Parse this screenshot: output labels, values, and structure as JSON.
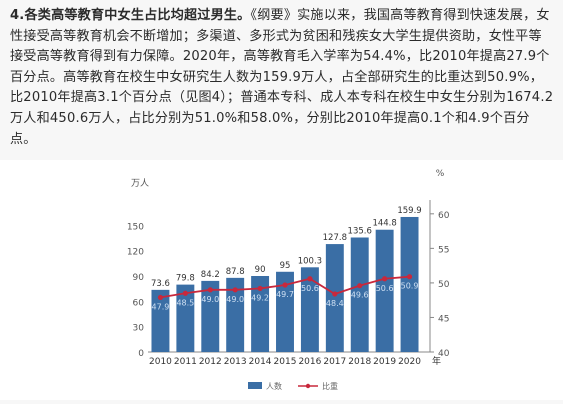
{
  "article": {
    "lead": "4.各类高等教育中女生占比均超过男生。",
    "body": "《纲要》实施以来，我国高等教育得到快速发展，女性接受高等教育机会不断增加；多渠道、多形式为贫困和残疾女大学生提供资助，女性平等接受高等教育得到有力保障。2020年，高等教育毛入学率为54.4%，比2010年提高27.9个百分点。高等教育在校生中女研究生人数为159.9万人，占全部研究生的比重达到50.9%，比2010年提高3.1个百分点（见图4）；普通本专科、成人本专科在校生中女生分别为1674.2万人和450.6万人，占比分别为51.0%和58.0%，分别比2010年提高0.1个和4.9个百分点。"
  },
  "chart_data": {
    "type": "bar",
    "categories": [
      "2010",
      "2011",
      "2012",
      "2013",
      "2014",
      "2015",
      "2016",
      "2017",
      "2018",
      "2019",
      "2020"
    ],
    "x_unit": "年",
    "series": [
      {
        "name": "人数",
        "axis": "left",
        "values": [
          73.6,
          79.8,
          84.2,
          87.8,
          90.0,
          95.0,
          100.3,
          127.8,
          135.6,
          144.8,
          159.9
        ],
        "color": "#3a6ea5"
      },
      {
        "name": "比重",
        "axis": "right",
        "type": "line",
        "values": [
          47.9,
          48.5,
          49.0,
          49.0,
          49.2,
          49.7,
          50.6,
          48.4,
          49.6,
          50.6,
          50.9
        ],
        "color": "#c8283c"
      }
    ],
    "y_left": {
      "unit": "万人",
      "ticks": [
        0,
        30,
        60,
        90,
        120,
        150
      ],
      "range": [
        0,
        180
      ]
    },
    "y_right": {
      "unit": "%",
      "ticks": [
        40,
        45,
        50,
        55,
        60
      ],
      "range": [
        40,
        62
      ]
    },
    "legend": "bottom-center"
  }
}
